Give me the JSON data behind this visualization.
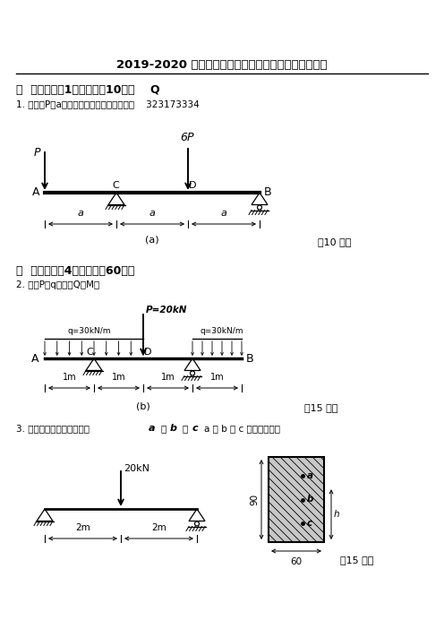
{
  "title": "2019-2020 学年第二学期期末考试《工程力学》大作业",
  "sec1": "一  作图题（关1题，总分倶10分）    Q",
  "q1": "1. 如图，P、a已知，试画出剪力图和弯矩图    323173334",
  "sec2": "二  计算题（关4题，总分倶60分）",
  "q2": "2. 已知P、q，试做Q、M图",
  "q3": "3. 图示简支梁，求跨中截面",
  "q3b": "a 、 b 、 c 三点正应力。",
  "note10": "（10 分）",
  "note15a": "（15 分）",
  "note15b": "（15 分）",
  "bg": "#ffffff"
}
